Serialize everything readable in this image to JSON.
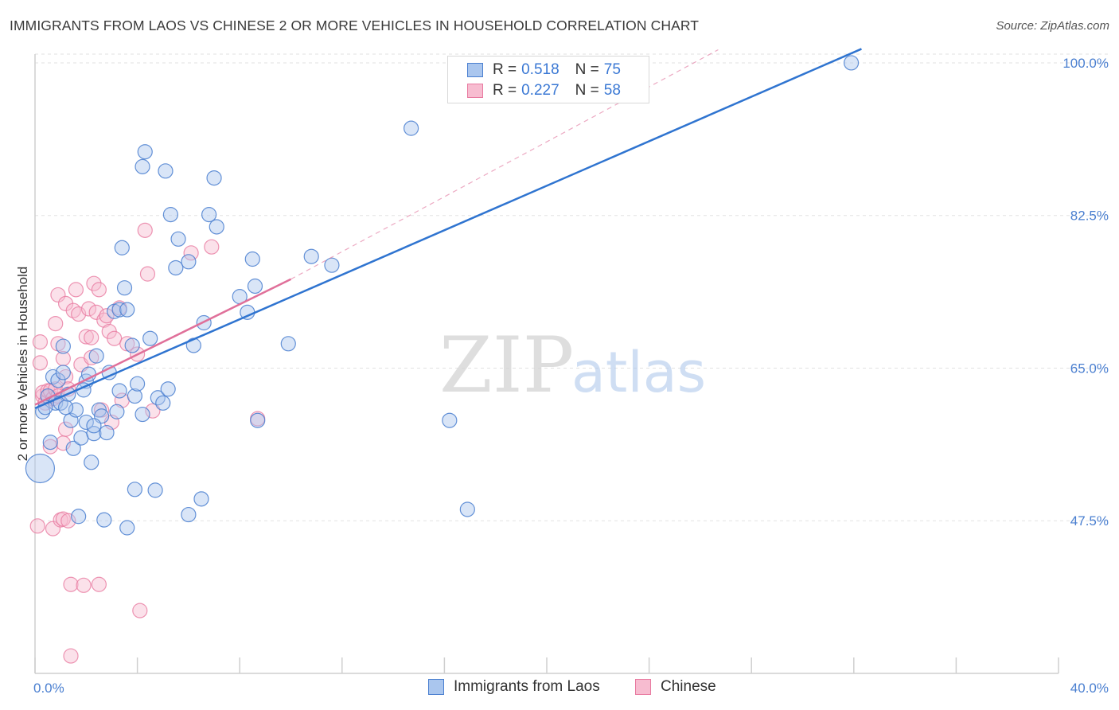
{
  "title": "IMMIGRANTS FROM LAOS VS CHINESE 2 OR MORE VEHICLES IN HOUSEHOLD CORRELATION CHART",
  "source": "Source: ZipAtlas.com",
  "watermark": {
    "zip": "ZIP",
    "atlas": "atlas"
  },
  "colors": {
    "blue": "#4a7fd0",
    "blue_fill": "#aac6ee",
    "blue_line": "#2f74d0",
    "pink": "#e87aa0",
    "pink_fill": "#f7bcd0",
    "pink_line": "#e0709a",
    "grid": "#e2e2e2",
    "axis": "#cfcfcf"
  },
  "legend": {
    "r_label": "R =",
    "n_label": "N =",
    "series": [
      {
        "r": "0.518",
        "n": "75"
      },
      {
        "r": "0.227",
        "n": "58"
      }
    ]
  },
  "bottom_legend": [
    "Immigrants from Laos",
    "Chinese"
  ],
  "chart_data": {
    "type": "scatter",
    "title": "IMMIGRANTS FROM LAOS VS CHINESE 2 OR MORE VEHICLES IN HOUSEHOLD CORRELATION CHART",
    "xlabel": "",
    "ylabel": "2 or more Vehicles in Household",
    "xlim": [
      0,
      40
    ],
    "ylim": [
      30,
      101
    ],
    "x_tick_labels": [
      "0.0%",
      "40.0%"
    ],
    "y_ticks": [
      47.5,
      65.0,
      82.5,
      100.0
    ],
    "y_tick_labels": [
      "47.5%",
      "65.0%",
      "82.5%",
      "100.0%"
    ],
    "grid": true,
    "series": [
      {
        "name": "Immigrants from Laos",
        "r": 0.518,
        "n": 75,
        "trend": {
          "x": [
            0,
            32.3
          ],
          "y": [
            60.4,
            101.6
          ]
        },
        "points": [
          {
            "x": 0.3,
            "y": 60.0
          },
          {
            "x": 0.5,
            "y": 61.8
          },
          {
            "x": 0.6,
            "y": 56.5
          },
          {
            "x": 0.7,
            "y": 64.0
          },
          {
            "x": 0.8,
            "y": 61.0
          },
          {
            "x": 0.9,
            "y": 63.6
          },
          {
            "x": 1.0,
            "y": 61.0
          },
          {
            "x": 1.1,
            "y": 64.5
          },
          {
            "x": 1.1,
            "y": 67.5
          },
          {
            "x": 1.3,
            "y": 62.0
          },
          {
            "x": 1.4,
            "y": 59.0
          },
          {
            "x": 1.5,
            "y": 55.8
          },
          {
            "x": 1.6,
            "y": 60.2
          },
          {
            "x": 1.7,
            "y": 48.0
          },
          {
            "x": 1.8,
            "y": 57.0
          },
          {
            "x": 2.0,
            "y": 63.5
          },
          {
            "x": 2.0,
            "y": 58.8
          },
          {
            "x": 2.1,
            "y": 64.3
          },
          {
            "x": 2.2,
            "y": 54.2
          },
          {
            "x": 2.3,
            "y": 57.5
          },
          {
            "x": 2.4,
            "y": 66.4
          },
          {
            "x": 2.5,
            "y": 60.2
          },
          {
            "x": 2.6,
            "y": 59.5
          },
          {
            "x": 2.7,
            "y": 47.6
          },
          {
            "x": 2.8,
            "y": 57.6
          },
          {
            "x": 2.9,
            "y": 64.5
          },
          {
            "x": 3.1,
            "y": 71.5
          },
          {
            "x": 3.2,
            "y": 60.0
          },
          {
            "x": 3.3,
            "y": 71.7
          },
          {
            "x": 3.3,
            "y": 62.4
          },
          {
            "x": 3.4,
            "y": 78.8
          },
          {
            "x": 3.5,
            "y": 74.2
          },
          {
            "x": 3.6,
            "y": 71.7
          },
          {
            "x": 3.6,
            "y": 46.7
          },
          {
            "x": 3.8,
            "y": 67.6
          },
          {
            "x": 3.9,
            "y": 61.8
          },
          {
            "x": 3.9,
            "y": 51.1
          },
          {
            "x": 4.0,
            "y": 63.2
          },
          {
            "x": 4.2,
            "y": 59.7
          },
          {
            "x": 4.2,
            "y": 88.1
          },
          {
            "x": 4.3,
            "y": 89.8
          },
          {
            "x": 4.5,
            "y": 68.4
          },
          {
            "x": 4.7,
            "y": 51.0
          },
          {
            "x": 4.8,
            "y": 61.6
          },
          {
            "x": 5.0,
            "y": 61.0
          },
          {
            "x": 5.1,
            "y": 87.6
          },
          {
            "x": 5.2,
            "y": 62.6
          },
          {
            "x": 5.3,
            "y": 82.6
          },
          {
            "x": 5.5,
            "y": 76.5
          },
          {
            "x": 5.6,
            "y": 79.8
          },
          {
            "x": 6.0,
            "y": 48.2
          },
          {
            "x": 6.0,
            "y": 77.2
          },
          {
            "x": 6.2,
            "y": 67.6
          },
          {
            "x": 6.5,
            "y": 50.0
          },
          {
            "x": 6.6,
            "y": 70.2
          },
          {
            "x": 6.8,
            "y": 82.6
          },
          {
            "x": 7.0,
            "y": 86.8
          },
          {
            "x": 7.1,
            "y": 81.2
          },
          {
            "x": 8.0,
            "y": 73.2
          },
          {
            "x": 8.3,
            "y": 71.4
          },
          {
            "x": 8.5,
            "y": 77.5
          },
          {
            "x": 8.6,
            "y": 74.4
          },
          {
            "x": 8.7,
            "y": 59.0
          },
          {
            "x": 9.9,
            "y": 67.8
          },
          {
            "x": 10.8,
            "y": 77.8
          },
          {
            "x": 11.6,
            "y": 76.8
          },
          {
            "x": 14.7,
            "y": 92.5
          },
          {
            "x": 16.2,
            "y": 59.0
          },
          {
            "x": 16.9,
            "y": 48.8
          },
          {
            "x": 31.9,
            "y": 100.0
          },
          {
            "x": 0.2,
            "y": 53.5
          },
          {
            "x": 0.4,
            "y": 60.5
          },
          {
            "x": 1.2,
            "y": 60.5
          },
          {
            "x": 2.3,
            "y": 58.4
          },
          {
            "x": 1.9,
            "y": 62.5
          }
        ]
      },
      {
        "name": "Chinese",
        "r": 0.227,
        "n": 58,
        "trend": {
          "x": [
            0,
            10.0
          ],
          "y": [
            60.8,
            75.2
          ]
        },
        "trend_extended": {
          "x": [
            10.0,
            26.7
          ],
          "y": [
            75.2,
            101.5
          ]
        },
        "points": [
          {
            "x": 0.1,
            "y": 46.9
          },
          {
            "x": 0.2,
            "y": 65.6
          },
          {
            "x": 0.2,
            "y": 68.0
          },
          {
            "x": 0.3,
            "y": 61.8
          },
          {
            "x": 0.3,
            "y": 62.2
          },
          {
            "x": 0.4,
            "y": 61.0
          },
          {
            "x": 0.5,
            "y": 61.7
          },
          {
            "x": 0.5,
            "y": 62.4
          },
          {
            "x": 0.6,
            "y": 56.0
          },
          {
            "x": 0.6,
            "y": 62.4
          },
          {
            "x": 0.7,
            "y": 46.6
          },
          {
            "x": 0.7,
            "y": 61.5
          },
          {
            "x": 0.8,
            "y": 62.6
          },
          {
            "x": 0.8,
            "y": 70.1
          },
          {
            "x": 0.9,
            "y": 73.4
          },
          {
            "x": 0.9,
            "y": 67.8
          },
          {
            "x": 0.9,
            "y": 61.8
          },
          {
            "x": 1.0,
            "y": 47.6
          },
          {
            "x": 1.1,
            "y": 47.7
          },
          {
            "x": 1.1,
            "y": 66.1
          },
          {
            "x": 1.2,
            "y": 72.4
          },
          {
            "x": 1.2,
            "y": 64.0
          },
          {
            "x": 1.1,
            "y": 56.4
          },
          {
            "x": 1.2,
            "y": 58.0
          },
          {
            "x": 1.3,
            "y": 47.5
          },
          {
            "x": 1.3,
            "y": 62.6
          },
          {
            "x": 1.4,
            "y": 40.2
          },
          {
            "x": 1.5,
            "y": 71.6
          },
          {
            "x": 1.6,
            "y": 74.0
          },
          {
            "x": 1.7,
            "y": 71.2
          },
          {
            "x": 1.8,
            "y": 65.4
          },
          {
            "x": 1.9,
            "y": 40.1
          },
          {
            "x": 1.4,
            "y": 32.0
          },
          {
            "x": 2.0,
            "y": 68.6
          },
          {
            "x": 2.1,
            "y": 71.8
          },
          {
            "x": 2.2,
            "y": 66.2
          },
          {
            "x": 2.3,
            "y": 74.7
          },
          {
            "x": 2.4,
            "y": 71.4
          },
          {
            "x": 2.5,
            "y": 74.0
          },
          {
            "x": 2.5,
            "y": 40.2
          },
          {
            "x": 2.6,
            "y": 60.2
          },
          {
            "x": 2.7,
            "y": 70.5
          },
          {
            "x": 2.8,
            "y": 71.0
          },
          {
            "x": 2.9,
            "y": 69.2
          },
          {
            "x": 3.0,
            "y": 58.8
          },
          {
            "x": 3.1,
            "y": 68.4
          },
          {
            "x": 3.3,
            "y": 71.9
          },
          {
            "x": 3.4,
            "y": 61.3
          },
          {
            "x": 3.6,
            "y": 67.8
          },
          {
            "x": 4.0,
            "y": 66.6
          },
          {
            "x": 4.1,
            "y": 37.2
          },
          {
            "x": 4.3,
            "y": 80.8
          },
          {
            "x": 4.4,
            "y": 75.8
          },
          {
            "x": 4.6,
            "y": 60.1
          },
          {
            "x": 6.1,
            "y": 78.2
          },
          {
            "x": 6.9,
            "y": 78.9
          },
          {
            "x": 8.7,
            "y": 59.2
          },
          {
            "x": 2.2,
            "y": 68.5
          }
        ]
      }
    ]
  }
}
